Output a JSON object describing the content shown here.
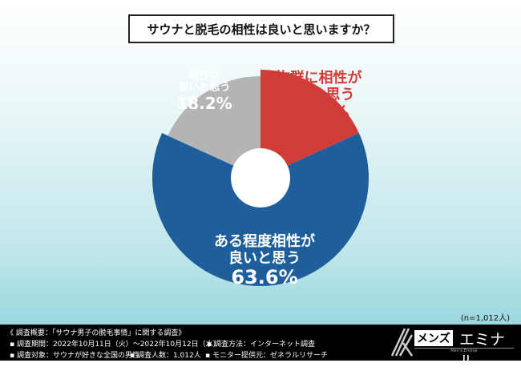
{
  "chart_data": {
    "type": "pie",
    "title": "サウナと脱毛の相性は良いと思いますか？",
    "slices": [
      {
        "label": "抜群に相性が良いと思う",
        "value": 18.2,
        "display": "18.2%",
        "color": "#d13b38"
      },
      {
        "label": "ある程度相性が良いと思う",
        "value": 63.6,
        "display": "63.6%",
        "color": "#1e5f9b"
      },
      {
        "label": "相性は悪いと思う",
        "value": 18.2,
        "display": "18.2%",
        "color": "#b4b4b4"
      }
    ],
    "donut": true
  },
  "labels": {
    "red_l1": "抜群に相性が",
    "red_l2": "良いと思う",
    "blue_l1": "ある程度相性が",
    "blue_l2": "良いと思う",
    "gray_l1": "相性は",
    "gray_l2": "悪いと思う"
  },
  "sample": "(n=1,012人)",
  "footer": {
    "heading": "《 調査概要：「サウナ男子の脱毛事情」に関する調査》",
    "period": "▪ 調査期間：2022年10月11日（火）～2022年10月12日（水）",
    "method": "▪ 調査方法：インターネット調査",
    "target": "▪ 調査対象：サウナが好きな全国の男性",
    "count": "▪ 調査人数：1,012人",
    "provider": "▪ モニター提供元：ゼネラルリサーチ"
  },
  "logo": {
    "part1": "メンズ",
    "part2": "エミナル",
    "sub": "Men's Eminal"
  }
}
